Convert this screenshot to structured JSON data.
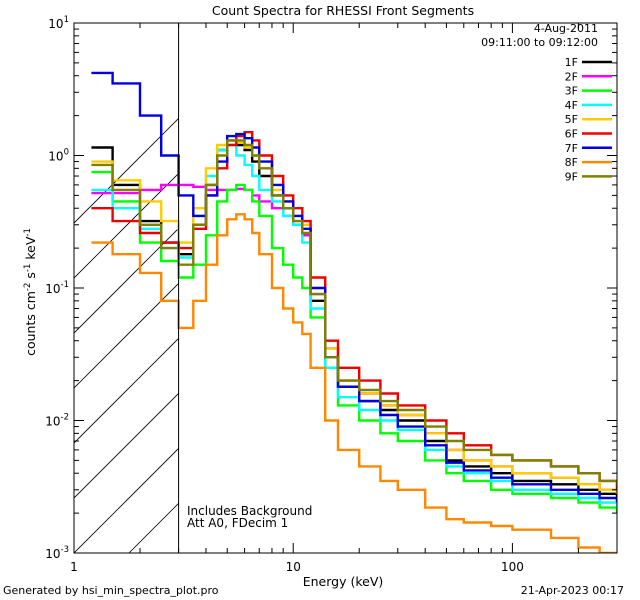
{
  "chart_data": {
    "type": "line",
    "title": "Count Spectra for RHESSI Front Segments",
    "xlabel": "Energy (keV)",
    "ylabel": {
      "main": "counts cm",
      "exp1": "-2",
      "mid": " s",
      "exp2": "-1",
      "end": " keV",
      "exp3": "-1"
    },
    "xscale": "log",
    "yscale": "log",
    "xlim": [
      1.0,
      300.0
    ],
    "ylim": [
      0.001,
      10.0
    ],
    "x_ticks": [
      {
        "value": 1,
        "label": "1"
      },
      {
        "value": 10,
        "label": "10"
      },
      {
        "value": 100,
        "label": "100"
      }
    ],
    "y_ticks": [
      {
        "value": 0.001,
        "base": "10",
        "exp": "-3"
      },
      {
        "value": 0.01,
        "base": "10",
        "exp": "-2"
      },
      {
        "value": 0.1,
        "base": "10",
        "exp": "-1"
      },
      {
        "value": 1,
        "base": "10",
        "exp": "0"
      },
      {
        "value": 10,
        "base": "10",
        "exp": "1"
      }
    ],
    "excluded_region": {
      "xmax": 3.0,
      "note": "hatched region below 3 keV"
    },
    "date": "4-Aug-2011",
    "time_range": "09:11:00 to 09:12:00",
    "annotations": [
      "Includes Background",
      "Att A0, FDecim 1"
    ],
    "generated_by": "Generated by hsi_min_spectra_plot.pro",
    "generated_on": "21-Apr-2023 00:17",
    "series": [
      {
        "name": "1F",
        "color": "#000000",
        "x": [
          1.2,
          1.5,
          2.0,
          2.5,
          3.0,
          3.5,
          4.0,
          4.5,
          5.0,
          5.5,
          6.0,
          6.5,
          7.0,
          8.0,
          9.0,
          10.0,
          11.0,
          12.0,
          14.0,
          16.0,
          20.0,
          25.0,
          30.0,
          40.0,
          50.0,
          60.0,
          80.0,
          100.0,
          150.0,
          200.0,
          250.0,
          300.0
        ],
        "y": [
          1.15,
          0.6,
          0.32,
          0.22,
          0.18,
          0.3,
          0.6,
          1.1,
          1.3,
          1.2,
          1.1,
          0.9,
          0.7,
          0.5,
          0.4,
          0.3,
          0.25,
          0.08,
          0.03,
          0.018,
          0.014,
          0.012,
          0.01,
          0.007,
          0.005,
          0.0045,
          0.004,
          0.0035,
          0.0033,
          0.003,
          0.0028,
          0.0025
        ]
      },
      {
        "name": "2F",
        "color": "#ff00ff",
        "x": [
          1.2,
          1.5,
          2.0,
          2.5,
          3.0,
          3.5,
          4.0,
          4.5,
          5.0,
          5.5,
          6.0,
          6.5,
          7.0,
          8.0,
          9.0,
          10.0,
          11.0,
          12.0,
          14.0,
          16.0,
          20.0,
          25.0,
          30.0,
          40.0,
          50.0,
          60.0,
          80.0,
          100.0,
          150.0,
          200.0,
          250.0,
          300.0
        ],
        "y": [
          0.52,
          0.52,
          0.55,
          0.6,
          0.6,
          0.58,
          0.55,
          0.55,
          0.55,
          0.56,
          0.55,
          0.5,
          0.45,
          0.4,
          0.35,
          0.3,
          0.25,
          0.09,
          0.035,
          0.02,
          0.016,
          0.013,
          0.011,
          0.008,
          0.006,
          0.005,
          0.0045,
          0.004,
          0.0037,
          0.0033,
          0.003,
          0.0028
        ]
      },
      {
        "name": "3F",
        "color": "#00ff00",
        "x": [
          1.2,
          1.5,
          2.0,
          2.5,
          3.0,
          3.5,
          4.0,
          4.5,
          5.0,
          5.5,
          6.0,
          6.5,
          7.0,
          8.0,
          9.0,
          10.0,
          11.0,
          12.0,
          14.0,
          16.0,
          20.0,
          25.0,
          30.0,
          40.0,
          50.0,
          60.0,
          80.0,
          100.0,
          150.0,
          200.0,
          250.0,
          300.0
        ],
        "y": [
          0.75,
          0.45,
          0.22,
          0.16,
          0.12,
          0.15,
          0.25,
          0.45,
          0.55,
          0.6,
          0.55,
          0.45,
          0.35,
          0.2,
          0.15,
          0.12,
          0.1,
          0.06,
          0.025,
          0.013,
          0.01,
          0.008,
          0.007,
          0.005,
          0.004,
          0.0035,
          0.003,
          0.0028,
          0.0026,
          0.0024,
          0.0022,
          0.002
        ]
      },
      {
        "name": "4F",
        "color": "#00ffff",
        "x": [
          1.2,
          1.5,
          2.0,
          2.5,
          3.0,
          3.5,
          4.0,
          4.5,
          5.0,
          5.5,
          6.0,
          6.5,
          7.0,
          8.0,
          9.0,
          10.0,
          11.0,
          12.0,
          14.0,
          16.0,
          20.0,
          25.0,
          30.0,
          40.0,
          50.0,
          60.0,
          80.0,
          100.0,
          150.0,
          200.0,
          250.0,
          300.0
        ],
        "y": [
          0.55,
          0.4,
          0.28,
          0.2,
          0.17,
          0.35,
          0.7,
          1.1,
          1.2,
          1.0,
          0.85,
          0.7,
          0.55,
          0.45,
          0.35,
          0.3,
          0.22,
          0.07,
          0.025,
          0.015,
          0.012,
          0.01,
          0.0085,
          0.006,
          0.0045,
          0.004,
          0.0035,
          0.003,
          0.0028,
          0.0026,
          0.0024,
          0.0022
        ]
      },
      {
        "name": "5F",
        "color": "#ffcc00",
        "x": [
          1.2,
          1.5,
          2.0,
          2.5,
          3.0,
          3.5,
          4.0,
          4.5,
          5.0,
          5.5,
          6.0,
          6.5,
          7.0,
          8.0,
          9.0,
          10.0,
          11.0,
          12.0,
          14.0,
          16.0,
          20.0,
          25.0,
          30.0,
          40.0,
          50.0,
          60.0,
          80.0,
          100.0,
          150.0,
          200.0,
          250.0,
          300.0
        ],
        "y": [
          0.9,
          0.65,
          0.45,
          0.32,
          0.22,
          0.4,
          0.8,
          1.2,
          1.3,
          1.25,
          1.15,
          1.0,
          0.8,
          0.55,
          0.45,
          0.35,
          0.3,
          0.1,
          0.035,
          0.02,
          0.016,
          0.013,
          0.011,
          0.008,
          0.006,
          0.005,
          0.0045,
          0.004,
          0.0037,
          0.0033,
          0.003,
          0.0028
        ]
      },
      {
        "name": "6F",
        "color": "#ee0000",
        "x": [
          1.2,
          1.5,
          2.0,
          2.5,
          3.0,
          3.5,
          4.0,
          4.5,
          5.0,
          5.5,
          6.0,
          6.5,
          7.0,
          8.0,
          9.0,
          10.0,
          11.0,
          12.0,
          14.0,
          16.0,
          20.0,
          25.0,
          30.0,
          40.0,
          50.0,
          60.0,
          80.0,
          100.0,
          150.0,
          200.0,
          250.0,
          300.0
        ],
        "y": [
          0.4,
          0.32,
          0.26,
          0.22,
          0.2,
          0.28,
          0.5,
          0.8,
          1.2,
          1.4,
          1.5,
          1.3,
          1.0,
          0.7,
          0.5,
          0.4,
          0.32,
          0.12,
          0.04,
          0.025,
          0.02,
          0.016,
          0.013,
          0.01,
          0.008,
          0.0065,
          0.0055,
          0.005,
          0.0045,
          0.004,
          0.0035,
          0.003
        ]
      },
      {
        "name": "7F",
        "color": "#0000dd",
        "x": [
          1.2,
          1.5,
          2.0,
          2.5,
          3.0,
          3.5,
          4.0,
          4.5,
          5.0,
          5.5,
          6.0,
          6.5,
          7.0,
          8.0,
          9.0,
          10.0,
          11.0,
          12.0,
          14.0,
          16.0,
          20.0,
          25.0,
          30.0,
          40.0,
          50.0,
          60.0,
          80.0,
          100.0,
          150.0,
          200.0,
          250.0,
          300.0
        ],
        "y": [
          4.2,
          3.5,
          2.0,
          1.0,
          0.5,
          0.35,
          0.5,
          0.9,
          1.4,
          1.45,
          1.35,
          1.15,
          0.9,
          0.6,
          0.45,
          0.35,
          0.28,
          0.1,
          0.03,
          0.018,
          0.014,
          0.011,
          0.009,
          0.0065,
          0.0048,
          0.0042,
          0.0037,
          0.0033,
          0.003,
          0.0028,
          0.0026,
          0.0024
        ]
      },
      {
        "name": "8F",
        "color": "#ff8800",
        "x": [
          1.2,
          1.5,
          2.0,
          2.5,
          3.0,
          3.5,
          4.0,
          4.5,
          5.0,
          5.5,
          6.0,
          6.5,
          7.0,
          8.0,
          9.0,
          10.0,
          11.0,
          12.0,
          14.0,
          16.0,
          20.0,
          25.0,
          30.0,
          40.0,
          50.0,
          60.0,
          80.0,
          100.0,
          150.0,
          200.0,
          250.0,
          300.0
        ],
        "y": [
          0.22,
          0.18,
          0.13,
          0.08,
          0.05,
          0.08,
          0.15,
          0.25,
          0.33,
          0.36,
          0.33,
          0.26,
          0.18,
          0.1,
          0.07,
          0.055,
          0.045,
          0.025,
          0.01,
          0.006,
          0.0045,
          0.0035,
          0.003,
          0.0022,
          0.0018,
          0.0017,
          0.0016,
          0.0015,
          0.0013,
          0.0011,
          0.001,
          0.001
        ]
      },
      {
        "name": "9F",
        "color": "#808000",
        "x": [
          1.2,
          1.5,
          2.0,
          2.5,
          3.0,
          3.5,
          4.0,
          4.5,
          5.0,
          5.5,
          6.0,
          6.5,
          7.0,
          8.0,
          9.0,
          10.0,
          11.0,
          12.0,
          14.0,
          16.0,
          20.0,
          25.0,
          30.0,
          40.0,
          50.0,
          60.0,
          80.0,
          100.0,
          150.0,
          200.0,
          250.0,
          300.0
        ],
        "y": [
          0.85,
          0.55,
          0.3,
          0.2,
          0.15,
          0.3,
          0.6,
          1.0,
          1.3,
          1.3,
          1.2,
          1.0,
          0.8,
          0.5,
          0.4,
          0.32,
          0.26,
          0.09,
          0.03,
          0.02,
          0.017,
          0.014,
          0.012,
          0.009,
          0.007,
          0.006,
          0.0055,
          0.005,
          0.0045,
          0.004,
          0.0035,
          0.0032
        ]
      }
    ]
  }
}
